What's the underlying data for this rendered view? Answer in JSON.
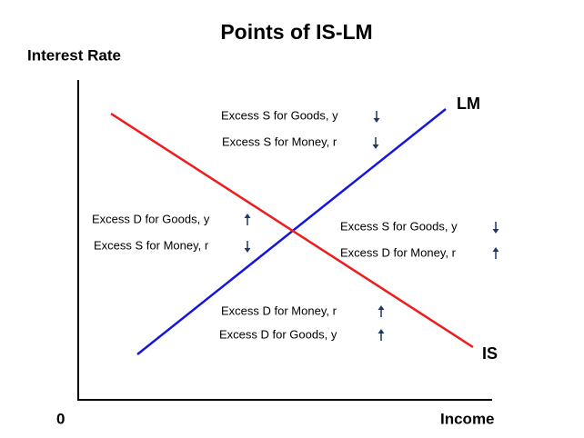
{
  "title": "Points of IS-LM",
  "axes": {
    "y_label": "Interest Rate",
    "x_label": "Income",
    "origin": "0"
  },
  "curves": [
    {
      "label": "LM"
    },
    {
      "label": "IS"
    }
  ],
  "regions": [
    {
      "items": [
        {
          "text": "Excess S for Goods, y",
          "arrow": "down"
        },
        {
          "text": "Excess S for Money, r",
          "arrow": "down"
        }
      ]
    },
    {
      "items": [
        {
          "text": "Excess D for Goods, y",
          "arrow": "up"
        },
        {
          "text": "Excess S for Money, r",
          "arrow": "down"
        }
      ]
    },
    {
      "items": [
        {
          "text": "Excess S for Goods, y",
          "arrow": "down"
        },
        {
          "text": "Excess D for Money, r",
          "arrow": "up"
        }
      ]
    },
    {
      "items": [
        {
          "text": "Excess D for Money, r",
          "arrow": "up"
        },
        {
          "text": "Excess D for Goods, y",
          "arrow": "up"
        }
      ]
    }
  ]
}
